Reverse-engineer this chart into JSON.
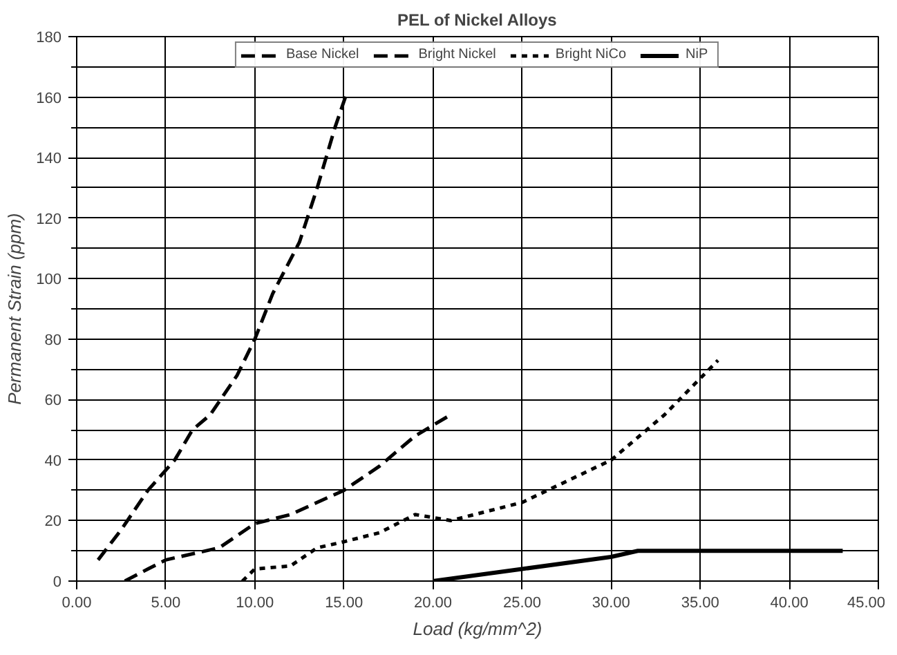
{
  "chart_data": {
    "type": "line",
    "title": "PEL of Nickel Alloys",
    "xlabel": "Load (kg/mm^2)",
    "ylabel": "Permanent Strain (ppm)",
    "series": [
      {
        "name": "Base Nickel",
        "color": "#000000",
        "line_style": "dashed",
        "x": [
          1.2,
          2.5,
          4,
          5.5,
          6.5,
          7.5,
          9,
          10,
          11,
          12.5,
          13.5,
          14.5,
          15.2
        ],
        "values": [
          7,
          17,
          30,
          40,
          50,
          55,
          68,
          80,
          95,
          112,
          130,
          150,
          162
        ]
      },
      {
        "name": "Bright Nickel",
        "color": "#000000",
        "line_style": "dashed",
        "x": [
          2.7,
          4,
          5,
          8,
          10,
          12,
          15,
          17,
          19,
          21
        ],
        "values": [
          0,
          4,
          7,
          11,
          19,
          22,
          30,
          38,
          48,
          55
        ]
      },
      {
        "name": "Bright NiCo",
        "color": "#000000",
        "line_style": "dotted",
        "x": [
          9.3,
          10,
          12,
          13.5,
          15,
          17,
          19,
          21,
          25,
          30,
          33,
          36
        ],
        "values": [
          0,
          4,
          5,
          11,
          13,
          16,
          22,
          20,
          26,
          40,
          55,
          73
        ]
      },
      {
        "name": "NiP",
        "color": "#000000",
        "line_style": "solid",
        "x": [
          20,
          25,
          30,
          31.5,
          43
        ],
        "values": [
          0,
          4,
          8,
          10,
          10
        ]
      }
    ],
    "xlim": [
      0,
      45
    ],
    "ylim": [
      0,
      180
    ],
    "xticks": [
      {
        "value": 0,
        "label": "0.00"
      },
      {
        "value": 5,
        "label": "5.00"
      },
      {
        "value": 10,
        "label": "10.00"
      },
      {
        "value": 15,
        "label": "15.00"
      },
      {
        "value": 20,
        "label": "20.00"
      },
      {
        "value": 25,
        "label": "25.00"
      },
      {
        "value": 30,
        "label": "30.00"
      },
      {
        "value": 35,
        "label": "35.00"
      },
      {
        "value": 40,
        "label": "40.00"
      },
      {
        "value": 45,
        "label": "45.00"
      }
    ],
    "yticks": [
      0,
      {
        "value": 10,
        "label": null
      },
      20,
      {
        "value": 30,
        "label": null
      },
      40,
      {
        "value": 50,
        "label": null
      },
      60,
      {
        "value": 70,
        "label": null
      },
      80,
      {
        "value": 90,
        "label": null
      },
      100,
      {
        "value": 110,
        "label": null
      },
      120,
      {
        "value": 130,
        "label": null
      },
      140,
      {
        "value": 150,
        "label": null
      },
      160,
      {
        "value": 170,
        "label": null
      },
      180
    ],
    "grid": true,
    "legend": "top",
    "marker": "none"
  }
}
